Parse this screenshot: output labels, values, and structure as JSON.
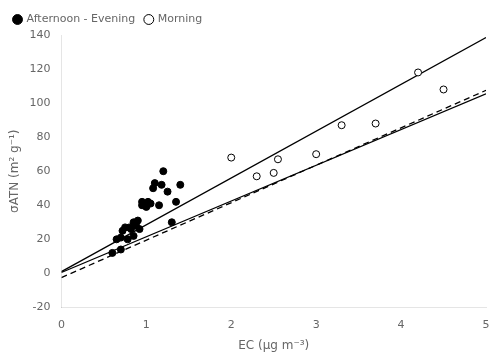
{
  "chart_data": {
    "type": "scatter",
    "xlabel": "EC (μg m⁻³)",
    "ylabel": "σATN (m² g⁻¹)",
    "series": [
      {
        "name": "Afternoon - Evening",
        "type": "scatter",
        "marker": "circle",
        "color": "#000000",
        "x": [
          0.6,
          0.65,
          0.7,
          0.7,
          0.72,
          0.75,
          0.78,
          0.8,
          0.82,
          0.85,
          0.85,
          0.88,
          0.9,
          0.92,
          0.95,
          0.95,
          0.98,
          1.0,
          1.0,
          1.02,
          1.05,
          1.08,
          1.1,
          1.15,
          1.18,
          1.2,
          1.25,
          1.3,
          1.35,
          1.4
        ],
        "values": [
          12,
          20,
          14,
          21,
          25,
          27,
          20,
          27,
          26,
          22,
          30,
          28,
          31,
          26,
          40,
          42,
          40,
          40,
          39,
          42,
          41,
          50,
          53,
          40,
          52,
          60,
          48,
          30,
          42,
          52
        ]
      },
      {
        "name": "Morning",
        "type": "scatter",
        "marker": "open_circle",
        "color": "#000000",
        "x": [
          2.0,
          2.3,
          2.5,
          2.55,
          3.0,
          3.3,
          3.7,
          4.2,
          4.5
        ],
        "values": [
          68,
          57,
          59,
          67,
          70,
          87,
          88,
          118,
          108
        ]
      },
      {
        "type": "line",
        "line_style": "solid",
        "color": "#000000",
        "x": [
          0,
          5
        ],
        "values": [
          1.0,
          138.5
        ]
      },
      {
        "type": "line",
        "line_style": "dashed",
        "color": "#000000",
        "x": [
          0,
          5
        ],
        "values": [
          -2.5,
          107.5
        ]
      },
      {
        "type": "line",
        "line_style": "solid",
        "color": "#000000",
        "x": [
          0,
          5
        ],
        "values": [
          0.5,
          105.5
        ]
      }
    ],
    "xlim": [
      0,
      5
    ],
    "xticks": [
      0,
      1,
      2,
      3,
      4,
      5
    ],
    "ylim": [
      -20,
      140
    ],
    "yticks": [
      -20,
      0,
      20,
      40,
      60,
      80,
      100,
      120,
      140
    ],
    "grid": false,
    "legend": "upper left"
  }
}
